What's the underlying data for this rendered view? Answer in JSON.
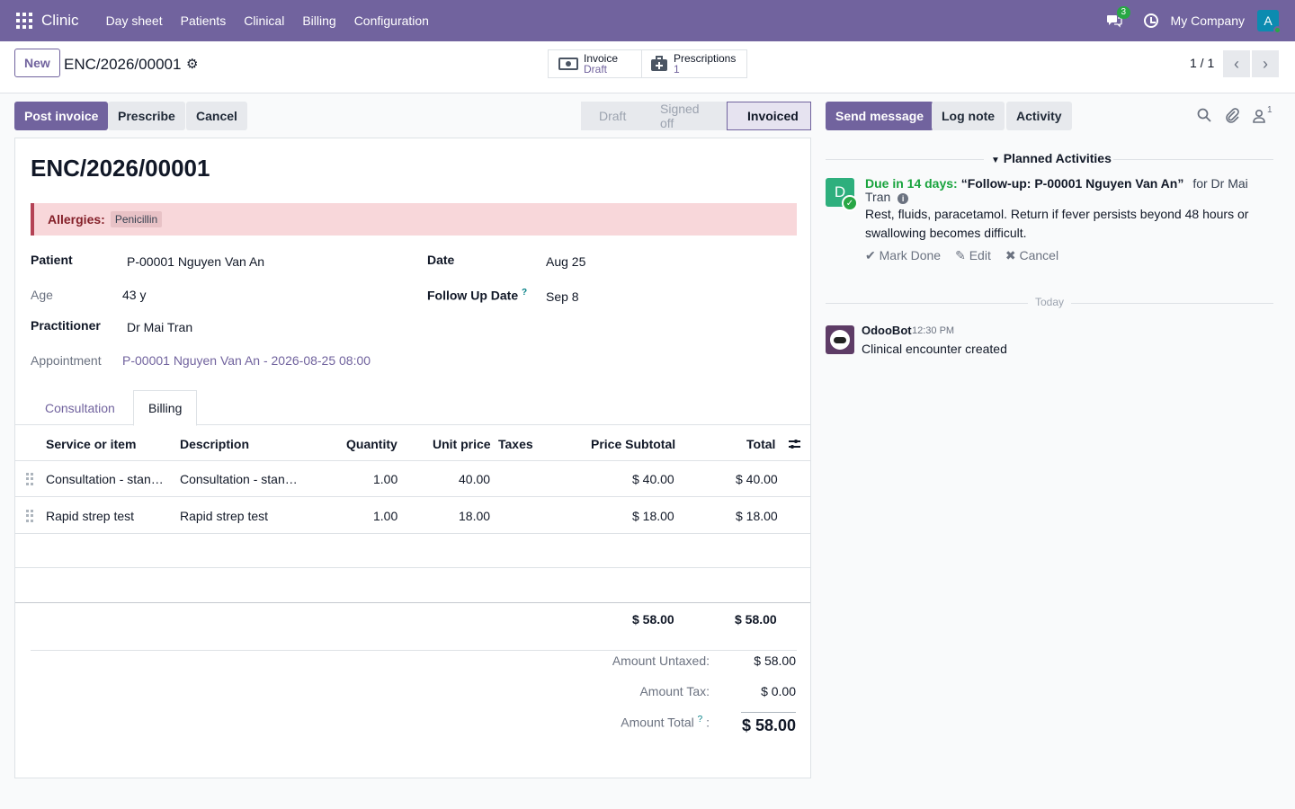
{
  "app": {
    "brand": "Clinic",
    "menu": [
      "Day sheet",
      "Patients",
      "Clinical",
      "Billing",
      "Configuration"
    ],
    "messages_count": "3",
    "company": "My Company",
    "user_initial": "A"
  },
  "control_panel": {
    "new_label": "New",
    "record_name": "ENC/2026/00001",
    "smart_buttons": [
      {
        "label": "Invoice",
        "value": "Draft"
      },
      {
        "label": "Prescriptions",
        "value": "1"
      }
    ],
    "pager": "1 / 1"
  },
  "actions": {
    "post_invoice": "Post invoice",
    "prescribe": "Prescribe",
    "cancel": "Cancel"
  },
  "statusbar": {
    "stages": [
      "Draft",
      "Signed off",
      "Invoiced"
    ],
    "active": "Invoiced"
  },
  "form": {
    "title": "ENC/2026/00001",
    "allergies_label": "Allergies:",
    "allergies": [
      "Penicillin"
    ],
    "patient_label": "Patient",
    "patient": "P-00001 Nguyen Van An",
    "age_label": "Age",
    "age": "43 y",
    "practitioner_label": "Practitioner",
    "practitioner": "Dr Mai Tran",
    "appointment_label": "Appointment",
    "appointment": "P-00001 Nguyen Van An - 2026-08-25 08:00",
    "date_label": "Date",
    "date": "Aug 25",
    "follow_up_label": "Follow Up Date",
    "follow_up_help": "?",
    "follow_up": "Sep 8"
  },
  "tabs": [
    "Consultation",
    "Billing"
  ],
  "active_tab": "Billing",
  "billing": {
    "columns": [
      "Service or item",
      "Description",
      "Quantity",
      "Unit price",
      "Taxes",
      "Price Subtotal",
      "Total"
    ],
    "rows": [
      {
        "service": "Consultation - stan…",
        "description": "Consultation - stan…",
        "quantity": "1.00",
        "unit_price": "40.00",
        "taxes": "",
        "subtotal": "$ 40.00",
        "total": "$ 40.00"
      },
      {
        "service": "Rapid strep test",
        "description": "Rapid strep test",
        "quantity": "1.00",
        "unit_price": "18.00",
        "taxes": "",
        "subtotal": "$ 18.00",
        "total": "$ 18.00"
      }
    ],
    "footer_subtotal": "$ 58.00",
    "footer_total": "$ 58.00",
    "untaxed_label": "Amount Untaxed:",
    "untaxed": "$ 58.00",
    "tax_label": "Amount Tax:",
    "tax": "$ 0.00",
    "total_label": "Amount Total",
    "total_help": "?",
    "total_colon": ":",
    "total": "$ 58.00"
  },
  "chatter": {
    "send_message": "Send message",
    "log_note": "Log note",
    "activity": "Activity",
    "followers_count": "1",
    "planned_title": "Planned Activities",
    "activity_item": {
      "avatar": "D",
      "due": "Due in 14 days:",
      "summary": "“Follow-up: P-00001 Nguyen Van An”",
      "for": "for Dr Mai Tran",
      "note": "Rest, fluids, paracetamol. Return if fever persists beyond 48 hours or swallowing becomes difficult.",
      "mark_done": "Mark Done",
      "edit": "Edit",
      "cancel": "Cancel"
    },
    "today": "Today",
    "message": {
      "author": "OdooBot",
      "time": "12:30 PM",
      "body": "Clinical encounter created"
    }
  }
}
